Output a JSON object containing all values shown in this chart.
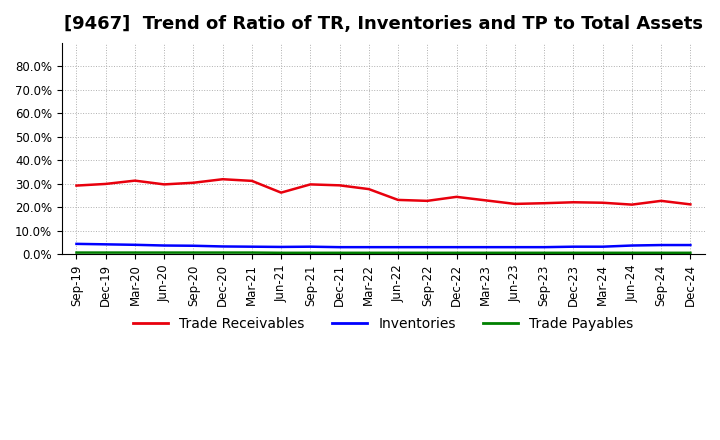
{
  "title": "[9467]  Trend of Ratio of TR, Inventories and TP to Total Assets",
  "x_labels": [
    "Sep-19",
    "Dec-19",
    "Mar-20",
    "Jun-20",
    "Sep-20",
    "Dec-20",
    "Mar-21",
    "Jun-21",
    "Sep-21",
    "Dec-21",
    "Mar-22",
    "Jun-22",
    "Sep-22",
    "Dec-22",
    "Mar-23",
    "Jun-23",
    "Sep-23",
    "Dec-23",
    "Mar-24",
    "Jun-24",
    "Sep-24",
    "Dec-24"
  ],
  "trade_receivables": [
    0.293,
    0.3,
    0.314,
    0.298,
    0.305,
    0.32,
    0.313,
    0.263,
    0.298,
    0.294,
    0.278,
    0.232,
    0.228,
    0.245,
    0.23,
    0.215,
    0.218,
    0.222,
    0.22,
    0.212,
    0.228,
    0.213
  ],
  "inventories": [
    0.045,
    0.043,
    0.041,
    0.038,
    0.037,
    0.034,
    0.033,
    0.032,
    0.033,
    0.031,
    0.031,
    0.031,
    0.031,
    0.031,
    0.031,
    0.031,
    0.031,
    0.033,
    0.033,
    0.038,
    0.04,
    0.04
  ],
  "trade_payables": [
    0.008,
    0.008,
    0.008,
    0.008,
    0.008,
    0.008,
    0.008,
    0.007,
    0.007,
    0.007,
    0.007,
    0.007,
    0.007,
    0.007,
    0.007,
    0.007,
    0.007,
    0.007,
    0.007,
    0.007,
    0.007,
    0.007
  ],
  "color_tr": "#e8000d",
  "color_inv": "#0000ff",
  "color_tp": "#008000",
  "ylim": [
    0.0,
    0.9
  ],
  "yticks": [
    0.0,
    0.1,
    0.2,
    0.3,
    0.4,
    0.5,
    0.6,
    0.7,
    0.8
  ],
  "background_color": "#ffffff",
  "plot_area_color": "#ffffff",
  "grid_color": "#b0b0b0",
  "legend_labels": [
    "Trade Receivables",
    "Inventories",
    "Trade Payables"
  ],
  "title_fontsize": 13,
  "tick_fontsize": 8.5,
  "legend_fontsize": 10
}
